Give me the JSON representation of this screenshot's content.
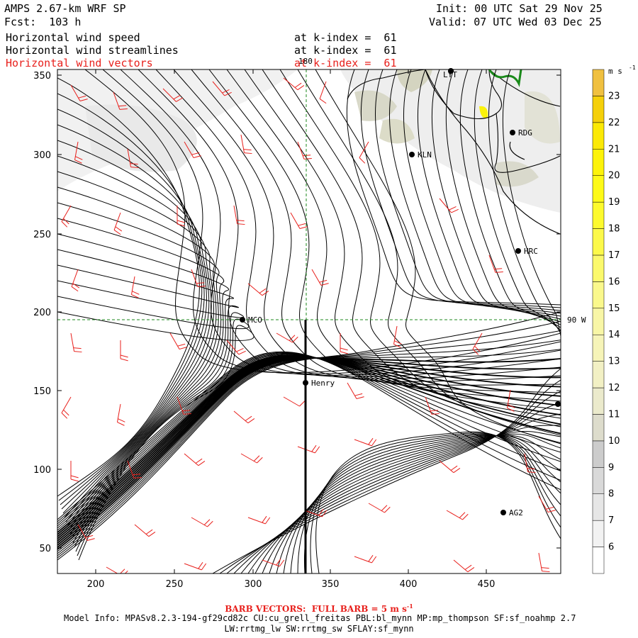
{
  "header": {
    "title": "AMPS 2.67-km WRF SP",
    "forecast": "Fcst:  103 h",
    "init": "Init: 00 UTC Sat 29 Nov 25",
    "valid": "Valid: 07 UTC Wed 03 Dec 25",
    "fields": [
      {
        "name": "Horizontal wind speed",
        "level": "at k-index =  61",
        "color": "#000000"
      },
      {
        "name": "Horizontal wind streamlines",
        "level": "at k-index =  61",
        "color": "#000000"
      },
      {
        "name": "Horizontal wind vectors",
        "level": "at k-index =  61",
        "color": "#e8201c"
      }
    ]
  },
  "map": {
    "x_ticks": [
      "200",
      "250",
      "300",
      "350",
      "400",
      "450"
    ],
    "y_ticks": [
      "350",
      "300",
      "250",
      "200",
      "150",
      "100",
      "50"
    ],
    "meridian_label": "180",
    "parallel_label": "90 W",
    "stations": [
      {
        "id": "LYT",
        "label": "LYT"
      },
      {
        "id": "RDG",
        "label": "RDG"
      },
      {
        "id": "KLN",
        "label": "KLN"
      },
      {
        "id": "HRC",
        "label": "HRC"
      },
      {
        "id": "MCO",
        "label": "MCO"
      },
      {
        "id": "Henry",
        "label": "Henry"
      },
      {
        "id": "AG2",
        "label": "AG2"
      },
      {
        "id": "E",
        "label": ""
      }
    ]
  },
  "colorbar": {
    "units": "m s",
    "units_exp": "-1",
    "levels": [
      "6",
      "7",
      "8",
      "9",
      "10",
      "11",
      "12",
      "13",
      "14",
      "15",
      "16",
      "17",
      "18",
      "19",
      "20",
      "21",
      "22",
      "23"
    ],
    "colors": [
      "#ffffff",
      "#f2f2f2",
      "#e6e6e6",
      "#d9d9d9",
      "#cccccc",
      "#dddccc",
      "#ebeacc",
      "#f2f0c4",
      "#f6f4b8",
      "#f8f6a6",
      "#faf88c",
      "#fbf96c",
      "#fcf94a",
      "#fdfa2e",
      "#fefa18",
      "#fdf30a",
      "#fbe906",
      "#f5d00a",
      "#f0c040"
    ]
  },
  "footer": {
    "barb_note": "BARB VECTORS:  FULL BARB = 5 m s",
    "barb_exp": "-1",
    "model_info": "Model Info: MPASv8.2.3-194-gf29cd82c CU:cu_grell_freitas PBL:bl_mynn MP:mp_thompson SF:sf_noahmp 2.7",
    "model_info2": "LW:rrtmg_lw SW:rrtmg_sw SFLAY:sf_mynn"
  }
}
